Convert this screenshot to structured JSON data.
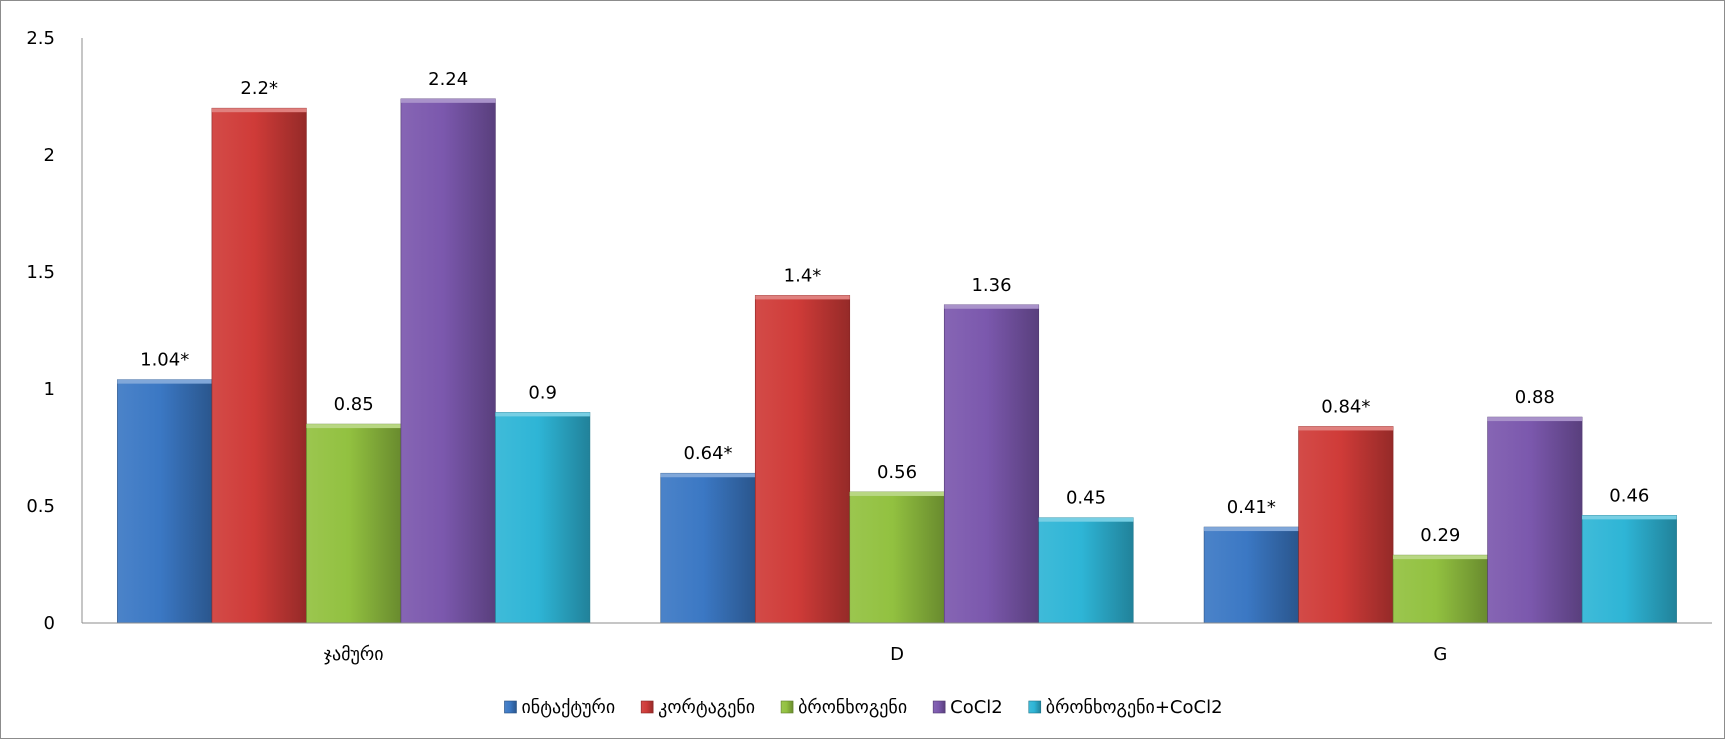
{
  "chart_data": {
    "type": "bar",
    "categories": [
      "ჯამური",
      "D",
      "G"
    ],
    "series": [
      {
        "name": "ინტაქტური",
        "color": "#3b78c4",
        "values": [
          1.04,
          0.64,
          0.41
        ],
        "labels": [
          "1.04*",
          "0.64*",
          "0.41*"
        ]
      },
      {
        "name": "კორტაგენი",
        "color": "#cf3b38",
        "values": [
          2.2,
          1.4,
          0.84
        ],
        "labels": [
          "2.2*",
          "1.4*",
          "0.84*"
        ]
      },
      {
        "name": "ბრონხოგენი",
        "color": "#92c140",
        "values": [
          0.85,
          0.56,
          0.29
        ],
        "labels": [
          "0.85",
          "0.56",
          "0.29"
        ]
      },
      {
        "name": "CoCl2",
        "color": "#7b58ad",
        "values": [
          2.24,
          1.36,
          0.88
        ],
        "labels": [
          "2.24",
          "1.36",
          "0.88"
        ]
      },
      {
        "name": "ბრონხოგენი+CoCl2",
        "color": "#2eb5d6",
        "values": [
          0.9,
          0.45,
          0.46
        ],
        "labels": [
          "0.9",
          "0.45",
          "0.46"
        ]
      }
    ],
    "yticks": [
      "0",
      "0.5",
      "1",
      "1.5",
      "2",
      "2.5"
    ],
    "ylim": [
      0,
      2.5
    ],
    "grid": false,
    "legend_position": "bottom"
  }
}
